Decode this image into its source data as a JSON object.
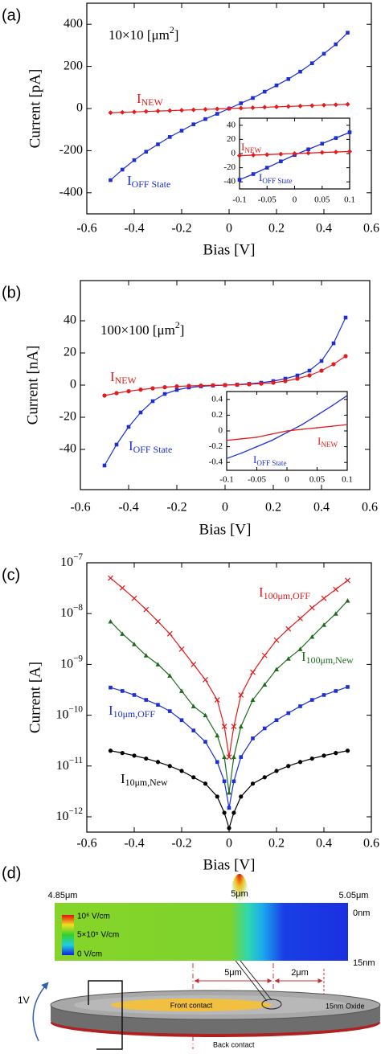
{
  "chart_data": [
    {
      "type": "line",
      "label": "(a)",
      "xlabel": "Bias [V]",
      "ylabel": "Current [pA]",
      "xlim": [
        -0.6,
        0.6
      ],
      "ylim": [
        -500,
        500
      ],
      "xticks": [
        -0.6,
        -0.4,
        -0.2,
        0,
        0.2,
        0.4,
        0.6
      ],
      "yticks": [
        -400,
        -200,
        0,
        200,
        400
      ],
      "x": [
        -0.5,
        -0.45,
        -0.4,
        -0.35,
        -0.3,
        -0.25,
        -0.2,
        -0.15,
        -0.1,
        -0.05,
        0,
        0.05,
        0.1,
        0.15,
        0.2,
        0.25,
        0.3,
        0.35,
        0.4,
        0.45,
        0.5
      ],
      "series": [
        {
          "name": "I OFF State",
          "color": "#1c2fd6",
          "marker": "square",
          "values": [
            -340,
            -290,
            -245,
            -205,
            -170,
            -135,
            -105,
            -75,
            -50,
            -25,
            0,
            25,
            50,
            80,
            110,
            140,
            175,
            215,
            260,
            305,
            360
          ]
        },
        {
          "name": "I NEW",
          "color": "#e41a1c",
          "marker": "diamond",
          "values": [
            -20,
            -18,
            -16,
            -14,
            -12,
            -10,
            -8,
            -6,
            -4,
            -2,
            0,
            2,
            4,
            6,
            8,
            10,
            12,
            14,
            16,
            18,
            20
          ]
        }
      ],
      "annotations": [
        {
          "text": "10×10 [μm",
          "sup": "2",
          "tail": "]",
          "color": "#000000"
        },
        {
          "text": "I",
          "sub": "NEW",
          "color": "#e41a1c"
        },
        {
          "text": "I",
          "sub": "OFF State",
          "color": "#1c2fd6"
        }
      ],
      "inset": {
        "type": "line",
        "xlim": [
          -0.1,
          0.1
        ],
        "ylim": [
          -50,
          50
        ],
        "xticks": [
          -0.1,
          -0.05,
          0,
          0.05,
          0.1
        ],
        "yticks": [
          -40,
          -20,
          0,
          20,
          40
        ],
        "x": [
          -0.1,
          -0.075,
          -0.05,
          -0.025,
          0,
          0.025,
          0.05,
          0.075,
          0.1
        ],
        "series": [
          {
            "name": "I OFF State",
            "color": "#1c2fd6",
            "marker": "square",
            "values": [
              -37,
              -29,
              -20,
              -11,
              -2,
              6,
              14,
              22,
              30
            ]
          },
          {
            "name": "I NEW",
            "color": "#e41a1c",
            "marker": "diamond",
            "values": [
              -3,
              -2.2,
              -1.5,
              -0.7,
              0,
              0.7,
              1.5,
              2.2,
              3
            ]
          }
        ],
        "annotations": [
          {
            "text": "I",
            "sub": "NEW",
            "color": "#e41a1c"
          },
          {
            "text": "I",
            "sub": "OFF State",
            "color": "#1c2fd6"
          }
        ]
      }
    },
    {
      "type": "line",
      "label": "(b)",
      "xlabel": "Bias [V]",
      "ylabel": "Current [nA]",
      "xlim": [
        -0.6,
        0.6
      ],
      "ylim": [
        -65,
        65
      ],
      "xticks": [
        -0.6,
        -0.4,
        -0.2,
        0,
        0.2,
        0.4,
        0.6
      ],
      "yticks": [
        -40,
        -20,
        0,
        20,
        40
      ],
      "x": [
        -0.5,
        -0.45,
        -0.4,
        -0.35,
        -0.3,
        -0.25,
        -0.2,
        -0.15,
        -0.1,
        -0.05,
        0,
        0.05,
        0.1,
        0.15,
        0.2,
        0.25,
        0.3,
        0.35,
        0.4,
        0.45,
        0.5
      ],
      "series": [
        {
          "name": "I OFF State",
          "color": "#1c2fd6",
          "marker": "square",
          "values": [
            -50,
            -37,
            -26,
            -17,
            -10,
            -5.5,
            -3,
            -1.5,
            -0.8,
            -0.3,
            0,
            0.3,
            0.8,
            1.5,
            2.5,
            4,
            6,
            9,
            15,
            26,
            42
          ]
        },
        {
          "name": "I NEW",
          "color": "#e41a1c",
          "marker": "circle",
          "values": [
            -6.5,
            -5,
            -3.8,
            -2.8,
            -2,
            -1.3,
            -0.8,
            -0.5,
            -0.3,
            -0.1,
            0,
            0.2,
            0.5,
            0.9,
            1.5,
            2.5,
            4,
            6,
            9,
            13,
            18
          ]
        }
      ],
      "annotations": [
        {
          "text": "100×100 [μm",
          "sup": "2",
          "tail": "]",
          "color": "#000000"
        },
        {
          "text": "I",
          "sub": "NEW",
          "color": "#e41a1c"
        },
        {
          "text": "I",
          "sub": "OFF State",
          "color": "#1c2fd6"
        }
      ],
      "inset": {
        "type": "line",
        "xlim": [
          -0.1,
          0.1
        ],
        "ylim": [
          -0.5,
          0.5
        ],
        "xticks": [
          -0.1,
          -0.05,
          0,
          0.05,
          0.1
        ],
        "yticks": [
          -0.4,
          -0.2,
          0,
          0.2,
          0.4
        ],
        "x": [
          -0.1,
          -0.075,
          -0.05,
          -0.025,
          0,
          0.025,
          0.05,
          0.075,
          0.1
        ],
        "series": [
          {
            "name": "I OFF State",
            "color": "#1c2fd6",
            "marker": "none",
            "values": [
              -0.35,
              -0.28,
              -0.2,
              -0.12,
              -0.02,
              0.08,
              0.2,
              0.32,
              0.45
            ]
          },
          {
            "name": "I NEW",
            "color": "#e41a1c",
            "marker": "none",
            "values": [
              -0.12,
              -0.1,
              -0.08,
              -0.04,
              0,
              0.02,
              0.04,
              0.06,
              0.08
            ]
          }
        ],
        "annotations": [
          {
            "text": "I",
            "sub": "NEW",
            "color": "#e41a1c"
          },
          {
            "text": "I",
            "sub": "OFF State",
            "color": "#1c2fd6"
          }
        ]
      }
    },
    {
      "type": "line",
      "label": "(c)",
      "xlabel": "Bias [V]",
      "ylabel": "Current [A]",
      "log_y": true,
      "xlim": [
        -0.6,
        0.6
      ],
      "ylim": [
        5e-13,
        1e-07
      ],
      "xticks": [
        -0.6,
        -0.4,
        -0.2,
        0,
        0.2,
        0.4,
        0.6
      ],
      "yticks": [
        {
          "value": 1e-12,
          "label": "10",
          "power": "−12"
        },
        {
          "value": 1e-11,
          "label": "10",
          "power": "−11"
        },
        {
          "value": 1e-10,
          "label": "10",
          "power": "−10"
        },
        {
          "value": 1e-09,
          "label": "10",
          "power": "−9"
        },
        {
          "value": 1e-08,
          "label": "10",
          "power": "−8"
        },
        {
          "value": 1e-07,
          "label": "10",
          "power": "−7"
        }
      ],
      "x": [
        -0.5,
        -0.45,
        -0.4,
        -0.35,
        -0.3,
        -0.25,
        -0.2,
        -0.15,
        -0.1,
        -0.05,
        -0.02,
        0,
        0.02,
        0.05,
        0.1,
        0.15,
        0.2,
        0.25,
        0.3,
        0.35,
        0.4,
        0.45,
        0.5
      ],
      "series": [
        {
          "name": "I 100μm,OFF",
          "color": "#e41a1c",
          "marker": "cross",
          "values": [
            5e-08,
            3.2e-08,
            2e-08,
            1.2e-08,
            7e-09,
            4e-09,
            2e-09,
            1e-09,
            5e-10,
            2e-10,
            6e-11,
            1.5e-11,
            6e-11,
            2.5e-10,
            7e-10,
            1.5e-09,
            3e-09,
            5e-09,
            8e-09,
            1.3e-08,
            2e-08,
            3e-08,
            4.5e-08
          ]
        },
        {
          "name": "I 100μm,New",
          "color": "#1e6b1e",
          "marker": "triangle",
          "values": [
            7e-09,
            4e-09,
            2.5e-09,
            1.5e-09,
            1e-09,
            6e-10,
            3e-10,
            1.5e-10,
            1e-10,
            4e-11,
            1.5e-11,
            3e-12,
            1.5e-11,
            6e-11,
            2e-10,
            4e-10,
            8e-10,
            1.3e-09,
            2e-09,
            3.5e-09,
            6e-09,
            1e-08,
            1.8e-08
          ]
        },
        {
          "name": "I 10μm,OFF",
          "color": "#1c2fd6",
          "marker": "square",
          "values": [
            3.5e-10,
            3e-10,
            2.5e-10,
            2e-10,
            1.6e-10,
            1.2e-10,
            8e-11,
            5e-11,
            3e-11,
            1.2e-11,
            5e-12,
            1.5e-12,
            5e-12,
            1.5e-11,
            3.5e-11,
            5.5e-11,
            8e-11,
            1.1e-10,
            1.5e-10,
            2e-10,
            2.5e-10,
            3e-10,
            3.6e-10
          ]
        },
        {
          "name": "I 10μm,New",
          "color": "#000000",
          "marker": "circle",
          "values": [
            2e-11,
            1.8e-11,
            1.6e-11,
            1.4e-11,
            1.2e-11,
            1e-11,
            8e-12,
            6e-12,
            4.5e-12,
            2.5e-12,
            1.2e-12,
            6e-13,
            1.2e-12,
            2.5e-12,
            4.5e-12,
            6e-12,
            8e-12,
            1e-11,
            1.2e-11,
            1.4e-11,
            1.6e-11,
            1.8e-11,
            2e-11
          ]
        }
      ],
      "annotations": [
        {
          "text": "I",
          "sub": "100μm,OFF",
          "color": "#e41a1c"
        },
        {
          "text": "I",
          "sub": "100μm,New",
          "color": "#1e6b1e"
        },
        {
          "text": "I",
          "sub": "10μm,OFF",
          "color": "#1c2fd6"
        },
        {
          "text": "I",
          "sub": "10μm,New",
          "color": "#000000"
        }
      ]
    }
  ],
  "diagram": {
    "label": "(d)",
    "x_start": "4.85μm",
    "x_mid": "5μm",
    "x_end": "5.05μm",
    "depth_top": "0nm",
    "depth_bottom": "15nm",
    "colorbar": [
      "10⁶ V/cm",
      "5×10⁵ V/cm",
      "0 V/cm"
    ],
    "span_contact": "5μm",
    "span_edge": "2μm",
    "front": "Front contact",
    "oxide": "15nm Oxide",
    "back": "Back contact",
    "bias": "1V"
  }
}
